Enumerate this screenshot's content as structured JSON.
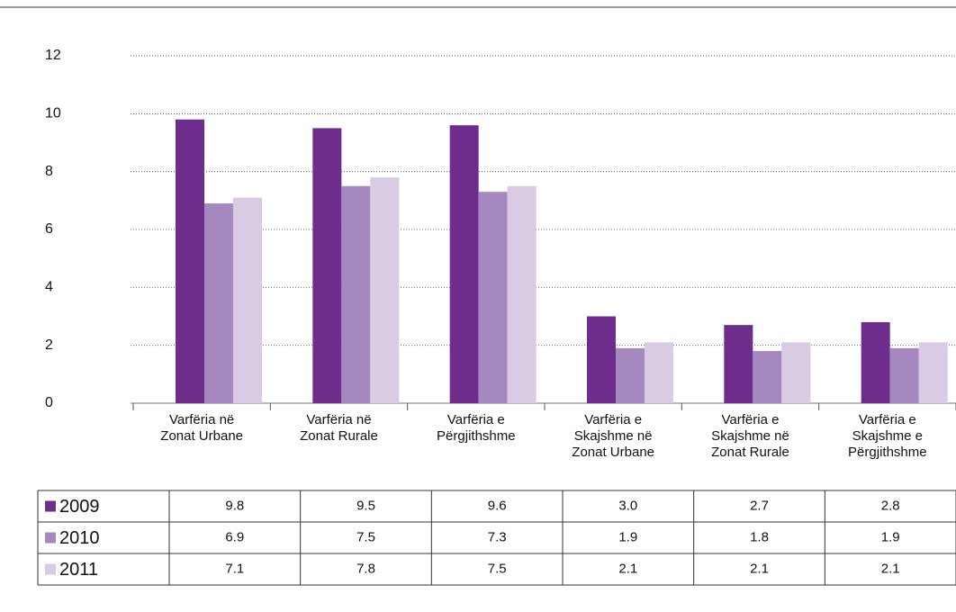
{
  "chart_data": {
    "type": "bar",
    "categories": [
      "Varfëria në Zonat Urbane",
      "Varfëria në Zonat Rurale",
      "Varfëria e Përgjithshme",
      "Varfëria e Skajshme në Zonat Urbane",
      "Varfëria e Skajshme në Zonat Rurale",
      "Varfëria e Skajshme e Përgjithshme"
    ],
    "series": [
      {
        "name": "2009",
        "color": "#6e2c8c",
        "values": [
          9.8,
          9.5,
          9.6,
          3.0,
          2.7,
          2.8
        ],
        "value_labels": [
          "9.8",
          "9.5",
          "9.6",
          "3.0",
          "2.7",
          "2.8"
        ]
      },
      {
        "name": "2010",
        "color": "#a688c0",
        "values": [
          6.9,
          7.5,
          7.3,
          1.9,
          1.8,
          1.9
        ],
        "value_labels": [
          "6.9",
          "7.5",
          "7.3",
          "1.9",
          "1.8",
          "1.9"
        ]
      },
      {
        "name": "2011",
        "color": "#d8cbe3",
        "values": [
          7.1,
          7.8,
          7.5,
          2.1,
          2.1,
          2.1
        ],
        "value_labels": [
          "7.1",
          "7.8",
          "7.5",
          "2.1",
          "2.1",
          "2.1"
        ]
      }
    ],
    "ylim": [
      0,
      12
    ],
    "yticks": [
      0,
      2,
      4,
      6,
      8,
      10,
      12
    ],
    "grid": true
  }
}
